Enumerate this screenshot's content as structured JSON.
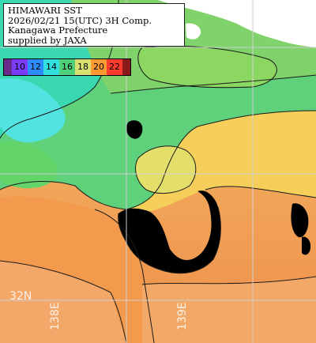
{
  "info": {
    "title": "HIMAWARI SST",
    "datetime": "2026/02/21 15(UTC) 3H Comp.",
    "region": "Kanagawa Prefecture",
    "credit": "supplied by JAXA"
  },
  "legend": {
    "unit": "",
    "items": [
      {
        "label": "10",
        "color": "#7a3cff"
      },
      {
        "label": "12",
        "color": "#2f8cff"
      },
      {
        "label": "14",
        "color": "#33e0e0"
      },
      {
        "label": "16",
        "color": "#4fd07a"
      },
      {
        "label": "18",
        "color": "#d8e070"
      },
      {
        "label": "20",
        "color": "#ff9a33"
      },
      {
        "label": "22",
        "color": "#ff3b2f"
      }
    ],
    "left_pad_color": "#6a2a8a",
    "right_pad_color": "#8b1a1a"
  },
  "grid": {
    "lat_label": "32N",
    "lon_labels": [
      "138E",
      "139E"
    ]
  },
  "colors": {
    "land": "#ffffff",
    "no_data": "#000000",
    "grid": "#cfcfcf",
    "contour": "#1a1a1a"
  }
}
